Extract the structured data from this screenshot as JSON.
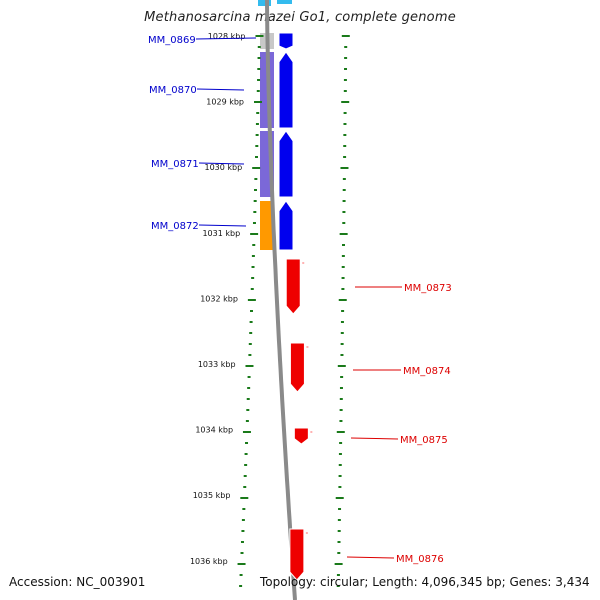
{
  "genome_title": "Methanosarcina mazei Go1, complete genome",
  "footer": {
    "accession": "Accession: NC_003901",
    "topology": "Topology: circular; Length: 4,096,345 bp; Genes: 3,434"
  },
  "colors": {
    "forward_gene": "#0000ee",
    "reverse_gene": "#ee0000",
    "forward_label": "#0000cc",
    "reverse_label": "#dd0000",
    "ticks": "#1a7a1a",
    "backbone": "#8a8a8a",
    "cog_purple": "#7b68d8",
    "cog_orange": "#ff9900",
    "cog_gray": "#c8c8c8",
    "cog_cyan": "#33bbee"
  },
  "scale_labels": [
    "1028 kbp",
    "1029 kbp",
    "1030 kbp",
    "1031 kbp",
    "1032 kbp",
    "1033 kbp",
    "1034 kbp",
    "1035 kbp",
    "1036 kbp"
  ],
  "genes": [
    {
      "label": "MM_0869",
      "strand": "forward",
      "cog_color": "gray"
    },
    {
      "label": "MM_0870",
      "strand": "forward",
      "cog_color": "purple"
    },
    {
      "label": "MM_0871",
      "strand": "forward",
      "cog_color": "purple"
    },
    {
      "label": "MM_0872",
      "strand": "forward",
      "cog_color": "orange"
    },
    {
      "label": "MM_0873",
      "strand": "reverse"
    },
    {
      "label": "MM_0874",
      "strand": "reverse"
    },
    {
      "label": "MM_0875",
      "strand": "reverse"
    },
    {
      "label": "MM_0876",
      "strand": "reverse"
    }
  ]
}
